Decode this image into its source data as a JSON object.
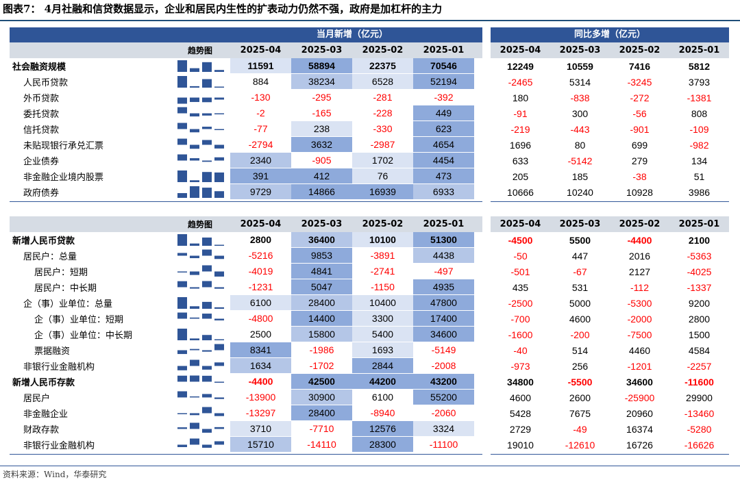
{
  "title": "图表7：  4月社融和信贷数据显示，企业和居民内生性的扩表动力仍然不强，政府是加杠杆的主力",
  "source": "资料来源：Wind，华泰研究",
  "colors": {
    "header_dark": "#2f5597",
    "header_light": "#d6dce4",
    "negative": "#ff0000",
    "heat_high": "#8eaadb",
    "heat_mid": "#b4c6e7",
    "heat_low": "#dae3f3",
    "spark": "#2f5597"
  },
  "headers": {
    "monthly": "当月新增（亿元）",
    "yoy": "同比多增（亿元）",
    "trend": "趋势图",
    "months": [
      "2025-04",
      "2025-03",
      "2025-02",
      "2025-01"
    ]
  },
  "section1": [
    {
      "label": "社会融资规模",
      "bold": true,
      "indent": 0,
      "m": [
        "11591",
        "58894",
        "22375",
        "70546"
      ],
      "y": [
        "12249",
        "10559",
        "7416",
        "5812"
      ]
    },
    {
      "label": "人民币贷款",
      "bold": false,
      "indent": 1,
      "m": [
        "884",
        "38234",
        "6528",
        "52194"
      ],
      "y": [
        "-2465",
        "5314",
        "-3245",
        "3793"
      ]
    },
    {
      "label": "外币贷款",
      "bold": false,
      "indent": 1,
      "m": [
        "-130",
        "-295",
        "-281",
        "-392"
      ],
      "y": [
        "180",
        "-838",
        "-272",
        "-1381"
      ]
    },
    {
      "label": "委托贷款",
      "bold": false,
      "indent": 1,
      "m": [
        "-2",
        "-165",
        "-228",
        "449"
      ],
      "y": [
        "-91",
        "300",
        "-56",
        "808"
      ]
    },
    {
      "label": "信托贷款",
      "bold": false,
      "indent": 1,
      "m": [
        "-77",
        "238",
        "-330",
        "623"
      ],
      "y": [
        "-219",
        "-443",
        "-901",
        "-109"
      ]
    },
    {
      "label": "未贴现银行承兑汇票",
      "bold": false,
      "indent": 1,
      "m": [
        "-2794",
        "3632",
        "-2987",
        "4654"
      ],
      "y": [
        "1696",
        "80",
        "699",
        "-982"
      ]
    },
    {
      "label": "企业债券",
      "bold": false,
      "indent": 1,
      "m": [
        "2340",
        "-905",
        "1702",
        "4454"
      ],
      "y": [
        "633",
        "-5142",
        "279",
        "134"
      ]
    },
    {
      "label": "非金融企业境内股票",
      "bold": false,
      "indent": 1,
      "m": [
        "391",
        "412",
        "76",
        "473"
      ],
      "y": [
        "205",
        "185",
        "-38",
        "51"
      ]
    },
    {
      "label": "政府债券",
      "bold": false,
      "indent": 1,
      "m": [
        "9729",
        "14866",
        "16939",
        "6933"
      ],
      "y": [
        "10666",
        "10240",
        "10928",
        "3986"
      ]
    }
  ],
  "section2": [
    {
      "label": "新增人民币贷款",
      "bold": true,
      "indent": 0,
      "m": [
        "2800",
        "36400",
        "10100",
        "51300"
      ],
      "y": [
        "-4500",
        "5500",
        "-4400",
        "2100"
      ]
    },
    {
      "label": "居民户：总量",
      "bold": false,
      "indent": 1,
      "m": [
        "-5216",
        "9853",
        "-3891",
        "4438"
      ],
      "y": [
        "-50",
        "447",
        "2016",
        "-5363"
      ]
    },
    {
      "label": "居民户：短期",
      "bold": false,
      "indent": 2,
      "m": [
        "-4019",
        "4841",
        "-2741",
        "-497"
      ],
      "y": [
        "-501",
        "-67",
        "2127",
        "-4025"
      ]
    },
    {
      "label": "居民户：中长期",
      "bold": false,
      "indent": 2,
      "m": [
        "-1231",
        "5047",
        "-1150",
        "4935"
      ],
      "y": [
        "435",
        "531",
        "-112",
        "-1337"
      ]
    },
    {
      "label": "企（事）业单位：总量",
      "bold": false,
      "indent": 1,
      "m": [
        "6100",
        "28400",
        "10400",
        "47800"
      ],
      "y": [
        "-2500",
        "5000",
        "-5300",
        "9200"
      ]
    },
    {
      "label": "企（事）业单位：短期",
      "bold": false,
      "indent": 2,
      "m": [
        "-4800",
        "14400",
        "3300",
        "17400"
      ],
      "y": [
        "-700",
        "4600",
        "-2000",
        "2800"
      ]
    },
    {
      "label": "企（事）业单位：中长期",
      "bold": false,
      "indent": 2,
      "m": [
        "2500",
        "15800",
        "5400",
        "34600"
      ],
      "y": [
        "-1600",
        "-200",
        "-7500",
        "1500"
      ]
    },
    {
      "label": "票据融资",
      "bold": false,
      "indent": 2,
      "m": [
        "8341",
        "-1986",
        "1693",
        "-5149"
      ],
      "y": [
        "-40",
        "514",
        "4460",
        "4584"
      ]
    },
    {
      "label": "非银行业金融机构",
      "bold": false,
      "indent": 1,
      "m": [
        "1634",
        "-1702",
        "2844",
        "-2008"
      ],
      "y": [
        "-973",
        "256",
        "-1201",
        "-2257"
      ]
    },
    {
      "label": "新增人民币存款",
      "bold": true,
      "indent": 0,
      "m": [
        "-4400",
        "42500",
        "44200",
        "43200"
      ],
      "y": [
        "34800",
        "-5500",
        "34600",
        "-11600"
      ]
    },
    {
      "label": "居民户",
      "bold": false,
      "indent": 1,
      "m": [
        "-13900",
        "30900",
        "6100",
        "55200"
      ],
      "y": [
        "4600",
        "2600",
        "-25900",
        "29900"
      ]
    },
    {
      "label": "非金融企业",
      "bold": false,
      "indent": 1,
      "m": [
        "-13297",
        "28400",
        "-8940",
        "-2060"
      ],
      "y": [
        "5428",
        "7675",
        "20960",
        "-13460"
      ]
    },
    {
      "label": "财政存款",
      "bold": false,
      "indent": 1,
      "m": [
        "3710",
        "-7710",
        "12576",
        "3324"
      ],
      "y": [
        "2729",
        "-49",
        "16374",
        "-5280"
      ]
    },
    {
      "label": "非银行业金融机构",
      "bold": false,
      "indent": 1,
      "m": [
        "15710",
        "-14110",
        "28300",
        "-11100"
      ],
      "y": [
        "19010",
        "-12610",
        "16726",
        "-16626"
      ]
    }
  ]
}
